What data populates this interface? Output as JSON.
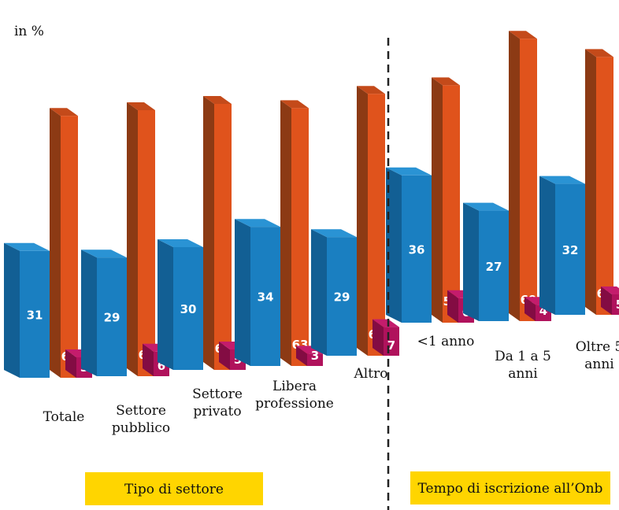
{
  "chart_data": {
    "type": "bar",
    "unit_label": "in %",
    "ylim": [
      0,
      100
    ],
    "categories": [
      "Totale",
      "Settore pubblico",
      "Settore privato",
      "Libera professione",
      "Altro",
      "<1 anno",
      "Da 1 a 5 anni",
      "Oltre 5 anni"
    ],
    "category_lines": [
      [
        "Totale"
      ],
      [
        "Settore",
        "pubblico"
      ],
      [
        "Settore",
        "privato"
      ],
      [
        "Libera",
        "professione"
      ],
      [
        "Altro"
      ],
      [
        "<1 anno"
      ],
      [
        "Da 1 a 5",
        "anni"
      ],
      [
        "Oltre 5",
        "anni"
      ]
    ],
    "series": [
      {
        "values": [
          31,
          29,
          30,
          34,
          29,
          36,
          27,
          32
        ],
        "color": "#1a7fc1"
      },
      {
        "values": [
          64,
          65,
          65,
          63,
          64,
          58,
          69,
          63
        ],
        "color": "#e0531c"
      },
      {
        "values": [
          5,
          6,
          5,
          3,
          7,
          6,
          4,
          5
        ],
        "color": "#b0125c"
      }
    ],
    "groups": [
      {
        "label": "Tipo di settore",
        "categories": [
          0,
          1,
          2,
          3,
          4
        ]
      },
      {
        "label": "Tempo di iscrizione all’Onb",
        "categories": [
          5,
          6,
          7
        ]
      }
    ],
    "group_box_color": "#ffd500",
    "separator": "dashed",
    "grid": false,
    "legend": "none"
  }
}
